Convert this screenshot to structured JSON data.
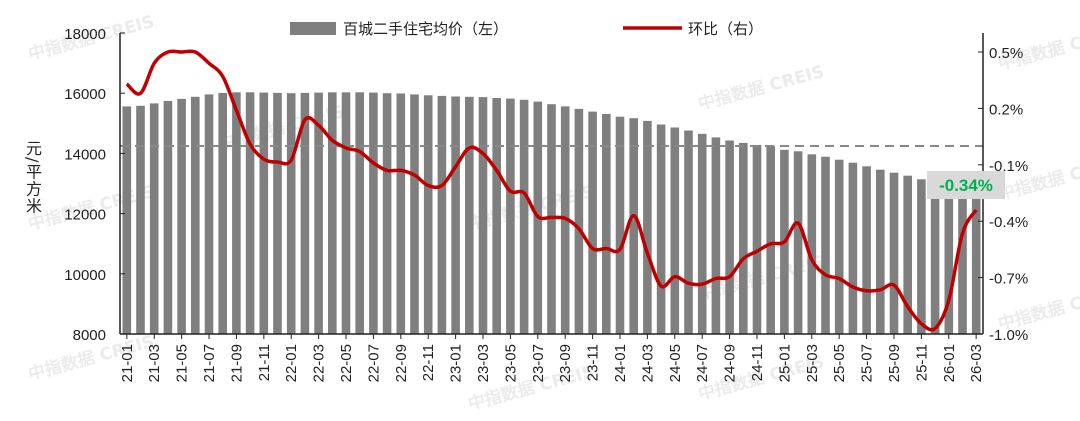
{
  "chart_data": {
    "type": "bar+line",
    "title": "",
    "ylabel_left": "元/平方米",
    "ylim_left": [
      8000,
      18000
    ],
    "yticks_left": [
      "8000",
      "10000",
      "12000",
      "14000",
      "16000",
      "18000"
    ],
    "ylim_right": [
      -1.0,
      0.5
    ],
    "yticks_right": [
      "-1.0%",
      "-0.7%",
      "-0.4%",
      "-0.1%",
      "0.2%",
      "0.5%"
    ],
    "reference_line_right": 0,
    "legend_position": "top",
    "categories": [
      "21-01",
      "21-02",
      "21-03",
      "21-04",
      "21-05",
      "21-06",
      "21-07",
      "21-08",
      "21-09",
      "21-10",
      "21-11",
      "21-12",
      "22-01",
      "22-02",
      "22-03",
      "22-04",
      "22-05",
      "22-06",
      "22-07",
      "22-08",
      "22-09",
      "22-10",
      "22-11",
      "22-12",
      "23-01",
      "23-02",
      "23-03",
      "23-04",
      "23-05",
      "23-06",
      "23-07",
      "23-08",
      "23-09",
      "23-10",
      "23-11",
      "23-12",
      "24-01",
      "24-02",
      "24-03",
      "24-04",
      "24-05",
      "24-06",
      "24-07",
      "24-08",
      "24-09",
      "24-10",
      "24-11",
      "24-12",
      "25-01",
      "25-02",
      "25-03",
      "25-04",
      "25-05",
      "25-06",
      "25-07",
      "25-08",
      "25-09",
      "25-10",
      "25-11",
      "25-12",
      "26-01",
      "26-02",
      "26-03"
    ],
    "series": [
      {
        "name": "百城二手住宅均价（左）",
        "type": "bar",
        "axis": "left",
        "color": "#7f7f7f",
        "values": [
          15560,
          15580,
          15660,
          15740,
          15810,
          15880,
          15960,
          16010,
          16030,
          16030,
          16020,
          16010,
          16000,
          16010,
          16020,
          16030,
          16030,
          16030,
          16020,
          16000,
          15990,
          15960,
          15930,
          15910,
          15890,
          15880,
          15870,
          15840,
          15820,
          15780,
          15720,
          15635,
          15560,
          15480,
          15390,
          15310,
          15220,
          15170,
          15080,
          14960,
          14860,
          14760,
          14650,
          14530,
          14430,
          14350,
          14280,
          14240,
          14120,
          14070,
          13970,
          13890,
          13790,
          13690,
          13570,
          13460,
          13360,
          13260,
          13140,
          13050,
          12960,
          12880,
          12800
        ]
      },
      {
        "name": "环比（右）",
        "type": "line",
        "axis": "right",
        "color": "#c00000",
        "unit": "%",
        "values": [
          0.33,
          0.28,
          0.44,
          0.5,
          0.5,
          0.5,
          0.44,
          0.37,
          0.19,
          0.01,
          -0.07,
          -0.085,
          -0.075,
          0.14,
          0.11,
          0.03,
          -0.01,
          -0.03,
          -0.09,
          -0.13,
          -0.13,
          -0.155,
          -0.21,
          -0.21,
          -0.11,
          -0.01,
          -0.04,
          -0.13,
          -0.24,
          -0.25,
          -0.375,
          -0.38,
          -0.385,
          -0.44,
          -0.545,
          -0.545,
          -0.55,
          -0.37,
          -0.57,
          -0.745,
          -0.695,
          -0.73,
          -0.735,
          -0.705,
          -0.695,
          -0.6,
          -0.56,
          -0.52,
          -0.51,
          -0.41,
          -0.605,
          -0.685,
          -0.705,
          -0.75,
          -0.77,
          -0.765,
          -0.74,
          -0.855,
          -0.945,
          -0.97,
          -0.82,
          -0.465,
          -0.34
        ]
      }
    ],
    "annotation": {
      "text": "-0.34%",
      "color": "#00b050",
      "background": "#d9d9d9"
    }
  },
  "legend": {
    "bar_label": "百城二手住宅均价（左）",
    "line_label": "环比（右）"
  },
  "watermark": "中指数据 CREIS"
}
